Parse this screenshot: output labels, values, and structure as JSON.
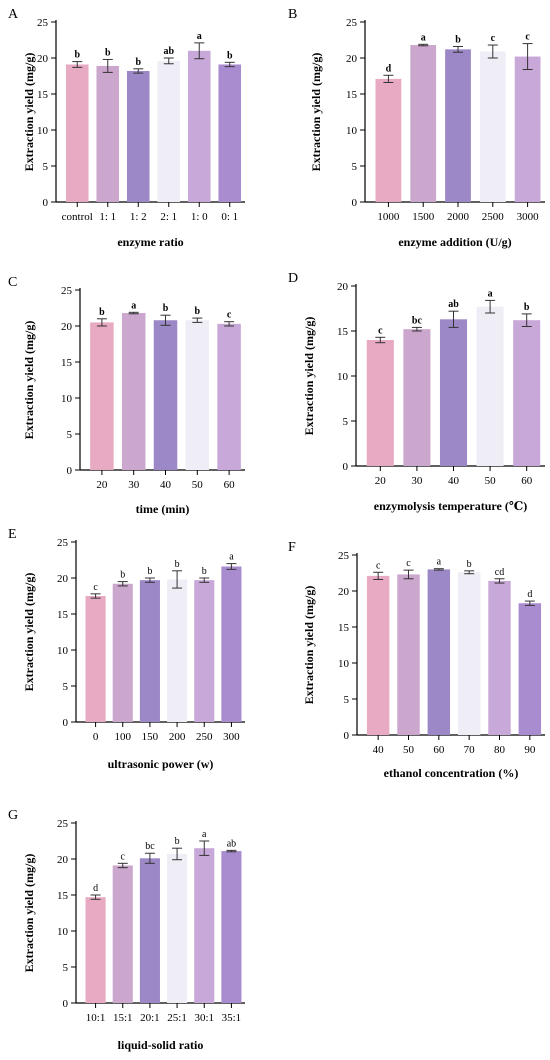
{
  "colors": [
    "#e8aac3",
    "#cba6cd",
    "#9c88c6",
    "#efedf6",
    "#c8a8d8",
    "#a98bd0"
  ],
  "chart_data": [
    {
      "panel_label": "A",
      "type": "bar",
      "categories": [
        "control",
        "1: 1",
        "1: 2",
        "2: 1",
        "1: 0",
        "0: 1"
      ],
      "values": [
        19.1,
        18.9,
        18.2,
        19.6,
        21.0,
        19.1
      ],
      "errors": [
        0.4,
        0.9,
        0.3,
        0.4,
        1.1,
        0.3
      ],
      "letters": [
        "b",
        "b",
        "b",
        "ab",
        "a",
        "b"
      ],
      "letters_bold": true,
      "xlabel": "enzyme ratio",
      "ylabel": "Extraction yield (mg/g)",
      "ylim": [
        0,
        25
      ],
      "yticks": [
        0,
        5,
        10,
        15,
        20,
        25
      ]
    },
    {
      "panel_label": "B",
      "type": "bar",
      "categories": [
        "1000",
        "1500",
        "2000",
        "2500",
        "3000"
      ],
      "values": [
        17.1,
        21.8,
        21.2,
        20.9,
        20.2
      ],
      "errors": [
        0.5,
        0.1,
        0.4,
        0.9,
        1.8
      ],
      "letters": [
        "d",
        "a",
        "b",
        "c",
        "c"
      ],
      "letters_bold": true,
      "xlabel": "enzyme addition (U/g)",
      "ylabel": "Extraction yield (mg/g)",
      "ylim": [
        0,
        25
      ],
      "yticks": [
        0,
        5,
        10,
        15,
        20,
        25
      ]
    },
    {
      "panel_label": "C",
      "type": "bar",
      "categories": [
        "20",
        "30",
        "40",
        "50",
        "60"
      ],
      "values": [
        20.5,
        21.8,
        20.8,
        20.8,
        20.3
      ],
      "errors": [
        0.5,
        0.1,
        0.7,
        0.3,
        0.3
      ],
      "letters": [
        "b",
        "a",
        "b",
        "b",
        "c"
      ],
      "letters_bold": true,
      "xlabel": "time (min)",
      "ylabel": "Extraction yield (mg/g)",
      "ylim": [
        0,
        25
      ],
      "yticks": [
        0,
        5,
        10,
        15,
        20,
        25
      ]
    },
    {
      "panel_label": "D",
      "type": "bar",
      "categories": [
        "20",
        "30",
        "40",
        "50",
        "60"
      ],
      "values": [
        14.0,
        15.2,
        16.3,
        17.7,
        16.2
      ],
      "errors": [
        0.3,
        0.2,
        0.9,
        0.7,
        0.7
      ],
      "letters": [
        "c",
        "bc",
        "ab",
        "a",
        "b"
      ],
      "letters_bold": true,
      "xlabel": "enzymolysis temperature (℃)",
      "ylabel": "Extraction yield (mg/g)",
      "ylim": [
        0,
        20
      ],
      "yticks": [
        0,
        5,
        10,
        15,
        20
      ]
    },
    {
      "panel_label": "E",
      "type": "bar",
      "categories": [
        "0",
        "100",
        "150",
        "200",
        "250",
        "300"
      ],
      "values": [
        17.5,
        19.2,
        19.7,
        19.8,
        19.7,
        21.6
      ],
      "errors": [
        0.3,
        0.3,
        0.3,
        1.2,
        0.3,
        0.4
      ],
      "letters": [
        "c",
        "b",
        "b",
        "b",
        "b",
        "a"
      ],
      "letters_bold": false,
      "xlabel": "ultrasonic power (w)",
      "ylabel": "Extraction yield (mg/g)",
      "ylim": [
        0,
        25
      ],
      "yticks": [
        0,
        5,
        10,
        15,
        20,
        25
      ]
    },
    {
      "panel_label": "F",
      "type": "bar",
      "categories": [
        "40",
        "50",
        "60",
        "70",
        "80",
        "90"
      ],
      "values": [
        22.1,
        22.3,
        23.0,
        22.6,
        21.4,
        18.3
      ],
      "errors": [
        0.5,
        0.6,
        0.1,
        0.2,
        0.3,
        0.3
      ],
      "letters": [
        "c",
        "c",
        "a",
        "b",
        "cd",
        "d"
      ],
      "letters_bold": false,
      "xlabel": "ethanol concentration (%)",
      "ylabel": "Extraction yield (mg/g)",
      "ylim": [
        0,
        25
      ],
      "yticks": [
        0,
        5,
        10,
        15,
        20,
        25
      ]
    },
    {
      "panel_label": "G",
      "type": "bar",
      "categories": [
        "10:1",
        "15:1",
        "20:1",
        "25:1",
        "30:1",
        "35:1"
      ],
      "values": [
        14.7,
        19.1,
        20.1,
        20.7,
        21.5,
        21.1
      ],
      "errors": [
        0.3,
        0.3,
        0.7,
        0.8,
        1.0,
        0.1
      ],
      "letters": [
        "d",
        "c",
        "bc",
        "b",
        "a",
        "ab"
      ],
      "letters_bold": false,
      "xlabel": "liquid-solid ratio",
      "ylabel": "Extraction yield (mg/g)",
      "ylim": [
        0,
        25
      ],
      "yticks": [
        0,
        5,
        10,
        15,
        20,
        25
      ]
    }
  ]
}
